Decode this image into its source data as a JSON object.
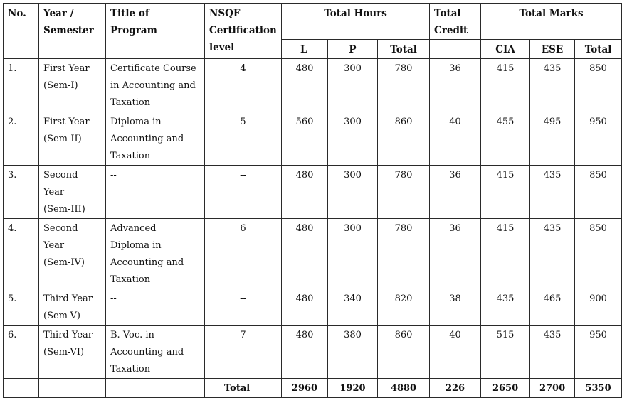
{
  "headers": {
    "no": "No.",
    "year_line1": "Year /",
    "year_line2": "Semester",
    "title_line1": "Title of",
    "title_line2": "Program",
    "nsqf_line1": "NSQF",
    "nsqf_line2": "Certification",
    "nsqf_line3": "level",
    "total_hours": "Total Hours",
    "total_credit_line1": "Total",
    "total_credit_line2": "Credit",
    "total_marks": "Total Marks",
    "l": "L",
    "p": "P",
    "hours_total": "Total",
    "cia": "CIA",
    "ese": "ESE",
    "marks_total": "Total"
  },
  "rows": [
    {
      "no": "1.",
      "year": [
        "First Year",
        "(Sem-I)"
      ],
      "program": [
        "Certificate Course",
        "in Accounting and",
        "Taxation"
      ],
      "nsqf": "4",
      "l": "480",
      "p": "300",
      "hours_total": "780",
      "credit": "36",
      "cia": "415",
      "ese": "435",
      "marks_total": "850"
    },
    {
      "no": "2.",
      "year": [
        "First Year",
        "(Sem-II)"
      ],
      "program": [
        "Diploma in",
        "Accounting and",
        "Taxation"
      ],
      "nsqf": "5",
      "l": "560",
      "p": "300",
      "hours_total": "860",
      "credit": "40",
      "cia": "455",
      "ese": "495",
      "marks_total": "950"
    },
    {
      "no": "3.",
      "year": [
        "Second",
        "Year",
        "(Sem-III)"
      ],
      "program": [
        "--"
      ],
      "nsqf": "--",
      "l": "480",
      "p": "300",
      "hours_total": "780",
      "credit": "36",
      "cia": "415",
      "ese": "435",
      "marks_total": "850"
    },
    {
      "no": "4.",
      "year": [
        "Second",
        "Year",
        "(Sem-IV)"
      ],
      "program": [
        "Advanced",
        "Diploma in",
        "Accounting and",
        "Taxation"
      ],
      "nsqf": "6",
      "l": "480",
      "p": "300",
      "hours_total": "780",
      "credit": "36",
      "cia": "415",
      "ese": "435",
      "marks_total": "850"
    },
    {
      "no": "5.",
      "year": [
        "Third Year",
        "(Sem-V)"
      ],
      "program": [
        "--"
      ],
      "nsqf": "--",
      "l": "480",
      "p": "340",
      "hours_total": "820",
      "credit": "38",
      "cia": "435",
      "ese": "465",
      "marks_total": "900"
    },
    {
      "no": "6.",
      "year": [
        "Third Year",
        "(Sem-VI)"
      ],
      "program": [
        "B. Voc. in",
        "Accounting and",
        "Taxation"
      ],
      "nsqf": "7",
      "l": "480",
      "p": "380",
      "hours_total": "860",
      "credit": "40",
      "cia": "515",
      "ese": "435",
      "marks_total": "950"
    }
  ],
  "totals": {
    "label": "Total",
    "l": "2960",
    "p": "1920",
    "hours_total": "4880",
    "credit": "226",
    "cia": "2650",
    "ese": "2700",
    "marks_total": "5350"
  }
}
